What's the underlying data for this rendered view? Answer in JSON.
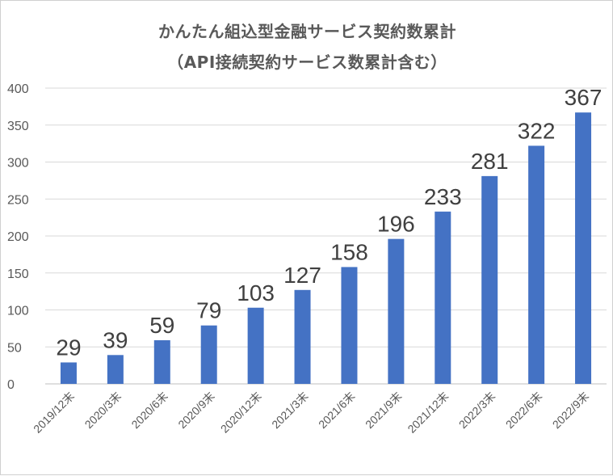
{
  "chart_data": {
    "type": "bar",
    "title": "かんたん組込型金融サービス契約数累計",
    "subtitle": "（API接続契約サービス数累計含む）",
    "categories": [
      "2019/12末",
      "2020/3末",
      "2020/6末",
      "2020/9末",
      "2020/12末",
      "2021/3末",
      "2021/6末",
      "2021/9末",
      "2021/12末",
      "2022/3末",
      "2022/6末",
      "2022/9末"
    ],
    "values": [
      29,
      39,
      59,
      79,
      103,
      127,
      158,
      196,
      233,
      281,
      322,
      367
    ],
    "ylim": [
      0,
      400
    ],
    "yticks": [
      0,
      50,
      100,
      150,
      200,
      250,
      300,
      350,
      400
    ],
    "xlabel": "",
    "ylabel": "",
    "grid": true,
    "data_labels": true,
    "bar_color": "#4472c4",
    "grid_color": "#d9d9d9"
  }
}
